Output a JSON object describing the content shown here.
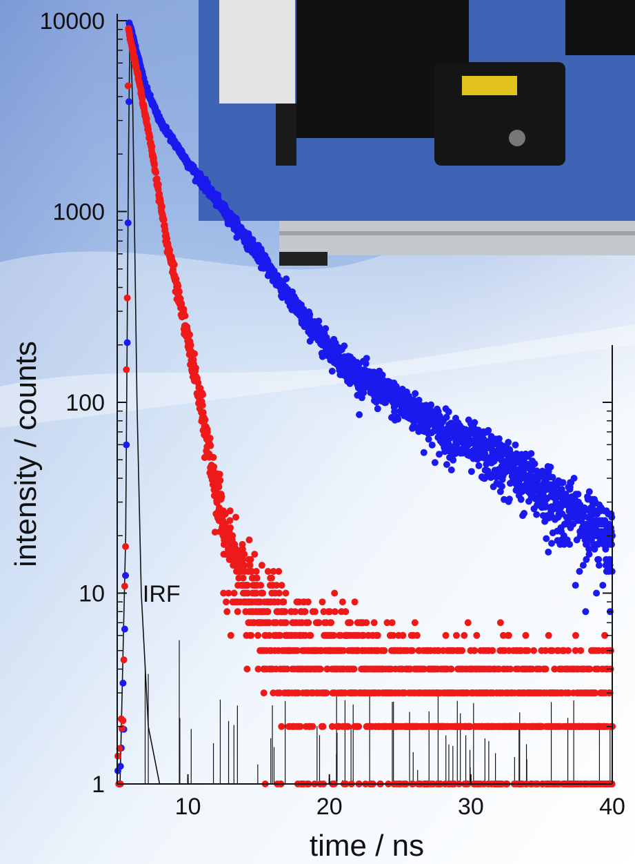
{
  "chart_data": {
    "type": "scatter",
    "title": "",
    "xlabel": "time / ns",
    "ylabel": "intensity / counts",
    "xlim": [
      5,
      40
    ],
    "ylim": [
      1,
      10000
    ],
    "yscale": "log",
    "grid": false,
    "x_ticks": [
      10,
      20,
      30,
      40
    ],
    "y_ticks": [
      1,
      10,
      100,
      1000,
      10000
    ],
    "annotations": [
      {
        "text": "IRF",
        "x": 6.8,
        "y": 9
      }
    ],
    "series": [
      {
        "color": "#1a1aee",
        "marker": "dot",
        "peak": {
          "x": 5.85,
          "y": 9800
        },
        "decay_points": [
          [
            5.85,
            9800
          ],
          [
            7,
            4500
          ],
          [
            8,
            3000
          ],
          [
            10,
            1800
          ],
          [
            12,
            1150
          ],
          [
            15,
            600
          ],
          [
            18,
            290
          ],
          [
            20,
            195
          ],
          [
            22,
            140
          ],
          [
            25,
            100
          ],
          [
            28,
            72
          ],
          [
            30,
            60
          ],
          [
            33,
            45
          ],
          [
            35,
            35
          ],
          [
            38,
            24
          ],
          [
            40,
            20
          ]
        ],
        "points_per_ns": 60
      },
      {
        "color": "#ee1a1a",
        "marker": "dot",
        "peak": {
          "x": 5.8,
          "y": 9000
        },
        "decay_points": [
          [
            5.8,
            9000
          ],
          [
            6.5,
            5000
          ],
          [
            7.5,
            2000
          ],
          [
            8.5,
            700
          ],
          [
            9.5,
            320
          ],
          [
            10.5,
            140
          ],
          [
            11.5,
            55
          ],
          [
            12.5,
            22
          ],
          [
            13.5,
            13
          ],
          [
            15,
            8
          ],
          [
            17,
            5.5
          ],
          [
            20,
            4
          ],
          [
            25,
            3
          ],
          [
            30,
            2.6
          ],
          [
            35,
            2.3
          ],
          [
            40,
            2.1
          ]
        ],
        "points_per_ns": 60
      },
      {
        "name": "IRF",
        "color": "#111111",
        "marker": "line",
        "peak": {
          "x": 5.9,
          "y": 9800
        },
        "decay_points": [
          [
            5.2,
            1
          ],
          [
            5.6,
            20
          ],
          [
            5.8,
            2000
          ],
          [
            5.9,
            9800
          ],
          [
            6.1,
            3500
          ],
          [
            6.4,
            100
          ],
          [
            6.7,
            10
          ],
          [
            7.2,
            2
          ],
          [
            8,
            1
          ]
        ]
      }
    ]
  },
  "colors": {
    "sky_top": "#6f8fd0",
    "sky_mid": "#a9c6ea",
    "instrument_base": "#3f63b5",
    "axis": "#111111"
  }
}
